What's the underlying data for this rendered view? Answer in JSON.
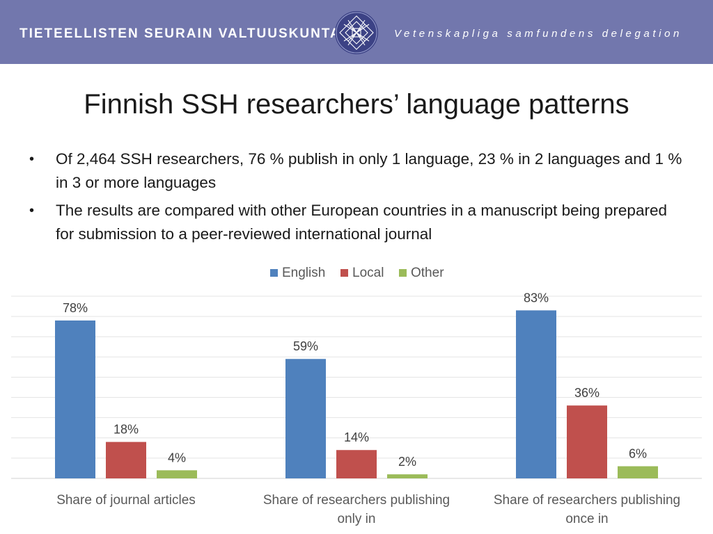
{
  "header": {
    "org_name_fi": "TIETEELLISTEN SEURAIN VALTUUSKUNTA",
    "org_name_sv": "Vetenskapliga samfundens delegation",
    "emblem_icon": "lattice-emblem-icon",
    "banner_color": "#7277ad"
  },
  "slide": {
    "title": "Finnish SSH researchers’ language patterns",
    "bullets": [
      "Of 2,464 SSH researchers, 76 % publish in only 1 language, 23 % in 2 languages and 1 % in 3 or more languages",
      "The results are compared with other European countries in a manuscript being prepared for submission to a peer-reviewed international journal"
    ],
    "bullet_glyph": "•"
  },
  "chart_data": {
    "type": "bar",
    "categories": [
      "Share of journal articles",
      "Share of researchers publishing only in",
      "Share of researchers publishing once in"
    ],
    "series": [
      {
        "name": "English",
        "values": [
          78,
          59,
          83
        ],
        "labels": [
          "78%",
          "59%",
          "83%"
        ],
        "color": "#4f81bd"
      },
      {
        "name": "Local",
        "values": [
          18,
          14,
          36
        ],
        "labels": [
          "18%",
          "14%",
          "36%"
        ],
        "color": "#c0504d"
      },
      {
        "name": "Other",
        "values": [
          4,
          2,
          6
        ],
        "labels": [
          "4%",
          "2%",
          "6%"
        ],
        "color": "#9bbb59"
      }
    ],
    "unit": "%",
    "ylim": [
      0,
      90
    ],
    "grid": true,
    "legend": "top-center",
    "title": "",
    "xlabel": "",
    "ylabel": ""
  }
}
